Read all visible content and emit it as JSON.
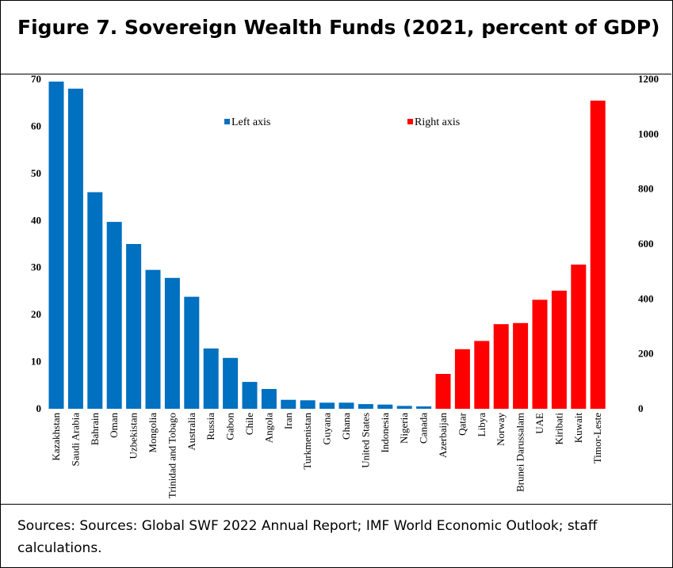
{
  "title": "Figure 7. Sovereign Wealth Funds (2021, percent of GDP)",
  "source": "Sources: Sources: Global SWF 2022 Annual Report; IMF World Economic Outlook; staff calculations.",
  "chart_data": {
    "type": "bar",
    "title": "",
    "ylim_left": [
      0,
      70
    ],
    "ylim_right": [
      0,
      1200
    ],
    "yticks_left": [
      0,
      10,
      20,
      30,
      40,
      50,
      60,
      70
    ],
    "yticks_right": [
      0,
      200,
      400,
      600,
      800,
      1000,
      1200
    ],
    "legend_placement": "top",
    "grid": false,
    "series": [
      {
        "name": "Left axis",
        "axis": "left",
        "color": "#0070c0",
        "categories": [
          "Kazakhstan",
          "Saudi Arabia",
          "Bahrain",
          "Oman",
          "Uzbekistan",
          "Mongolia",
          "Trinidad and Tobago",
          "Australia",
          "Russia",
          "Gabon",
          "Chile",
          "Angola",
          "Iran",
          "Turkmenistan",
          "Guyana",
          "Ghana",
          "United States",
          "Indonesia",
          "Nigeria",
          "Canada"
        ],
        "values": [
          69.5,
          68,
          46,
          39.7,
          35,
          29.5,
          27.8,
          23.8,
          12.8,
          10.8,
          5.7,
          4.2,
          1.9,
          1.8,
          1.3,
          1.3,
          1.0,
          0.9,
          0.6,
          0.5
        ]
      },
      {
        "name": "Right axis",
        "axis": "right",
        "color": "#ff0000",
        "categories": [
          "Azerbaijan",
          "Qatar",
          "Libya",
          "Norway",
          "Brunei Darussalam",
          "UAE",
          "Kiribati",
          "Kuwait",
          "Timor-Leste"
        ],
        "values": [
          127,
          217,
          247,
          308,
          312,
          397,
          430,
          525,
          1122
        ]
      }
    ]
  }
}
